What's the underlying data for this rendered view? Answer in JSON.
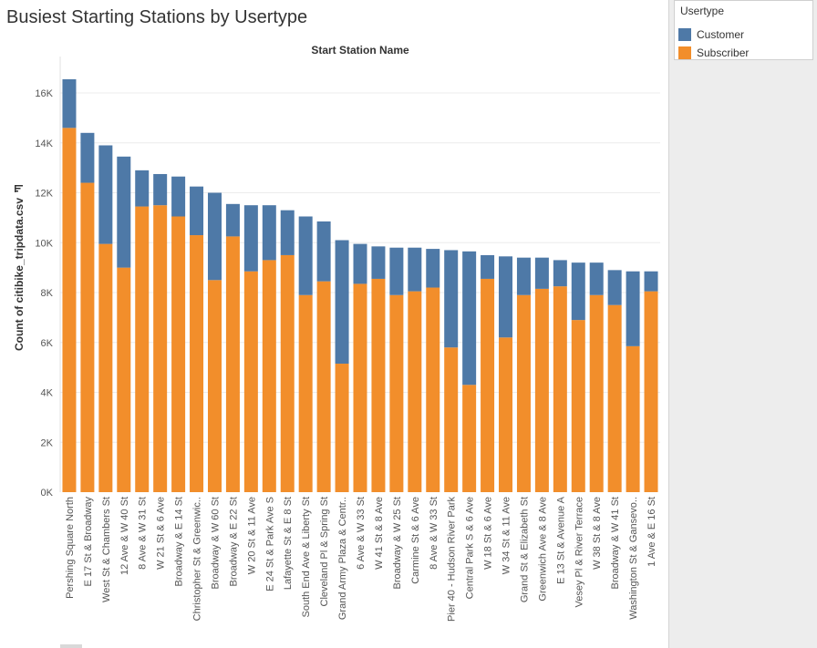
{
  "title": "Busiest Starting Stations by Usertype",
  "legend": {
    "title": "Usertype",
    "items": [
      {
        "label": "Customer",
        "color": "#4e79a7"
      },
      {
        "label": "Subscriber",
        "color": "#f28e2b"
      }
    ]
  },
  "chart_data": {
    "type": "bar",
    "stacked": true,
    "title": "Busiest Starting Stations by Usertype",
    "column_header": "Start Station Name",
    "ylabel": "Count of citibike_tripdata.csv",
    "ylim": [
      0,
      16000
    ],
    "yticks": [
      0,
      2000,
      4000,
      6000,
      8000,
      10000,
      12000,
      14000,
      16000
    ],
    "ytick_labels": [
      "0K",
      "2K",
      "4K",
      "6K",
      "8K",
      "10K",
      "12K",
      "14K",
      "16K"
    ],
    "grid": true,
    "categories": [
      "Pershing Square North",
      "E 17 St & Broadway",
      "West St & Chambers St",
      "12 Ave & W 40 St",
      "8 Ave & W 31 St",
      "W 21 St & 6 Ave",
      "Broadway & E 14 St",
      "Christopher St & Greenwic..",
      "Broadway & W 60 St",
      "Broadway & E 22 St",
      "W 20 St & 11 Ave",
      "E 24 St & Park Ave S",
      "Lafayette St & E 8 St",
      "South End Ave & Liberty St",
      "Cleveland Pl & Spring St",
      "Grand Army Plaza & Centr..",
      "6 Ave & W 33 St",
      "W 41 St & 8 Ave",
      "Broadway & W 25 St",
      "Carmine St & 6 Ave",
      "8 Ave & W 33 St",
      "Pier 40 - Hudson River Park",
      "Central Park S & 6 Ave",
      "W 18 St & 6 Ave",
      "W 34 St & 11 Ave",
      "Grand St & Elizabeth St",
      "Greenwich Ave & 8 Ave",
      "E 13 St & Avenue A",
      "Vesey Pl & River Terrace",
      "W 38 St & 8 Ave",
      "Broadway & W 41 St",
      "Washington St & Gansevo..",
      "1 Ave & E 16 St"
    ],
    "series": [
      {
        "name": "Subscriber",
        "color": "#f28e2b",
        "values": [
          14600,
          12400,
          9950,
          9000,
          11450,
          11500,
          11050,
          10300,
          8500,
          10250,
          8850,
          9300,
          9500,
          7900,
          8450,
          5150,
          8350,
          8550,
          7900,
          8050,
          8200,
          5800,
          4300,
          8550,
          6200,
          7900,
          8150,
          8250,
          6900,
          7900,
          7500,
          5850,
          8050
        ]
      },
      {
        "name": "Customer",
        "color": "#4e79a7",
        "values": [
          1950,
          2000,
          3950,
          4450,
          1450,
          1250,
          1600,
          1950,
          3500,
          1300,
          2650,
          2200,
          1800,
          3150,
          2400,
          4950,
          1600,
          1300,
          1900,
          1750,
          1550,
          3900,
          5350,
          950,
          3250,
          1500,
          1250,
          1050,
          2300,
          1300,
          1400,
          3000,
          800
        ]
      }
    ]
  }
}
